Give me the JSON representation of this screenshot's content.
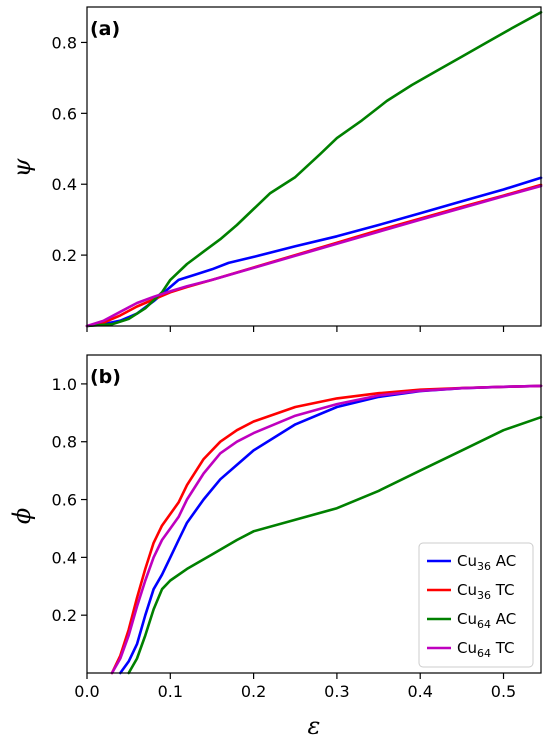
{
  "chart_data": [
    {
      "type": "line",
      "panel_label": "(a)",
      "xlabel": "",
      "ylabel": "ψ",
      "xlim": [
        0.0,
        0.545
      ],
      "ylim": [
        0.0,
        0.9
      ],
      "xticks": [],
      "yticks": [
        "0.2",
        "0.4",
        "0.6",
        "0.8"
      ],
      "ytick_values": [
        0.2,
        0.4,
        0.6,
        0.8
      ],
      "xtick_marks": [
        0.0,
        0.1,
        0.2,
        0.3,
        0.4,
        0.5
      ],
      "grid": false,
      "series": [
        {
          "name": "Cu36 AC",
          "color": "#0000ff",
          "x": [
            0.0,
            0.02,
            0.04,
            0.06,
            0.08,
            0.1,
            0.11,
            0.13,
            0.15,
            0.17,
            0.2,
            0.25,
            0.3,
            0.35,
            0.4,
            0.45,
            0.5,
            0.545
          ],
          "y": [
            0.0,
            0.005,
            0.015,
            0.035,
            0.07,
            0.11,
            0.13,
            0.145,
            0.16,
            0.178,
            0.195,
            0.225,
            0.253,
            0.285,
            0.318,
            0.352,
            0.385,
            0.418
          ]
        },
        {
          "name": "Cu36 TC",
          "color": "#ff0000",
          "x": [
            0.0,
            0.02,
            0.04,
            0.06,
            0.08,
            0.1,
            0.12,
            0.15,
            0.2,
            0.25,
            0.3,
            0.35,
            0.4,
            0.45,
            0.5,
            0.545
          ],
          "y": [
            0.0,
            0.01,
            0.03,
            0.055,
            0.075,
            0.095,
            0.11,
            0.13,
            0.165,
            0.2,
            0.235,
            0.27,
            0.303,
            0.336,
            0.368,
            0.398
          ]
        },
        {
          "name": "Cu64 AC",
          "color": "#008000",
          "x": [
            0.0,
            0.03,
            0.05,
            0.07,
            0.09,
            0.1,
            0.12,
            0.14,
            0.16,
            0.18,
            0.2,
            0.22,
            0.25,
            0.28,
            0.3,
            0.33,
            0.36,
            0.39,
            0.42,
            0.45,
            0.48,
            0.51,
            0.545
          ],
          "y": [
            0.0,
            0.005,
            0.02,
            0.05,
            0.095,
            0.13,
            0.175,
            0.21,
            0.245,
            0.285,
            0.33,
            0.375,
            0.42,
            0.485,
            0.53,
            0.58,
            0.635,
            0.68,
            0.72,
            0.76,
            0.8,
            0.84,
            0.885
          ]
        },
        {
          "name": "Cu64 TC",
          "color": "#bf00bf",
          "x": [
            0.0,
            0.02,
            0.04,
            0.06,
            0.08,
            0.1,
            0.12,
            0.15,
            0.2,
            0.25,
            0.3,
            0.35,
            0.4,
            0.45,
            0.5,
            0.545
          ],
          "y": [
            0.0,
            0.015,
            0.04,
            0.065,
            0.082,
            0.098,
            0.112,
            0.13,
            0.164,
            0.198,
            0.232,
            0.266,
            0.3,
            0.333,
            0.366,
            0.395
          ]
        }
      ]
    },
    {
      "type": "line",
      "panel_label": "(b)",
      "xlabel": "ε",
      "ylabel": "ϕ",
      "xlim": [
        0.0,
        0.545
      ],
      "ylim": [
        0.0,
        1.1
      ],
      "xticks": [
        "0.0",
        "0.1",
        "0.2",
        "0.3",
        "0.4",
        "0.5"
      ],
      "xtick_values": [
        0.0,
        0.1,
        0.2,
        0.3,
        0.4,
        0.5
      ],
      "yticks": [
        "0.2",
        "0.4",
        "0.6",
        "0.8",
        "1.0"
      ],
      "ytick_values": [
        0.2,
        0.4,
        0.6,
        0.8,
        1.0
      ],
      "grid": false,
      "legend_position": "bottom-right",
      "series": [
        {
          "name": "Cu36 AC",
          "label_base": "Cu",
          "label_sub": "36",
          "label_rest": " AC",
          "color": "#0000ff",
          "x": [
            0.04,
            0.05,
            0.06,
            0.07,
            0.08,
            0.09,
            0.1,
            0.11,
            0.12,
            0.14,
            0.16,
            0.18,
            0.2,
            0.25,
            0.3,
            0.35,
            0.4,
            0.45,
            0.5,
            0.545
          ],
          "y": [
            0.0,
            0.04,
            0.1,
            0.2,
            0.29,
            0.34,
            0.4,
            0.46,
            0.52,
            0.6,
            0.67,
            0.72,
            0.77,
            0.86,
            0.92,
            0.955,
            0.975,
            0.985,
            0.99,
            0.993
          ]
        },
        {
          "name": "Cu36 TC",
          "label_base": "Cu",
          "label_sub": "36",
          "label_rest": " TC",
          "color": "#ff0000",
          "x": [
            0.03,
            0.04,
            0.05,
            0.06,
            0.07,
            0.08,
            0.09,
            0.1,
            0.11,
            0.12,
            0.14,
            0.16,
            0.18,
            0.2,
            0.25,
            0.3,
            0.35,
            0.4,
            0.45,
            0.5,
            0.545
          ],
          "y": [
            0.0,
            0.06,
            0.15,
            0.26,
            0.36,
            0.45,
            0.51,
            0.55,
            0.59,
            0.65,
            0.74,
            0.8,
            0.84,
            0.87,
            0.92,
            0.95,
            0.968,
            0.98,
            0.986,
            0.99,
            0.993
          ]
        },
        {
          "name": "Cu64 AC",
          "label_base": "Cu",
          "label_sub": "64",
          "label_rest": " AC",
          "color": "#008000",
          "x": [
            0.05,
            0.06,
            0.07,
            0.08,
            0.09,
            0.1,
            0.12,
            0.15,
            0.18,
            0.2,
            0.25,
            0.3,
            0.35,
            0.4,
            0.45,
            0.5,
            0.545
          ],
          "y": [
            0.0,
            0.05,
            0.13,
            0.22,
            0.29,
            0.32,
            0.36,
            0.41,
            0.46,
            0.49,
            0.53,
            0.57,
            0.63,
            0.7,
            0.77,
            0.84,
            0.885
          ]
        },
        {
          "name": "Cu64 TC",
          "label_base": "Cu",
          "label_sub": "64",
          "label_rest": " TC",
          "color": "#bf00bf",
          "x": [
            0.03,
            0.04,
            0.05,
            0.06,
            0.07,
            0.08,
            0.09,
            0.1,
            0.11,
            0.12,
            0.14,
            0.16,
            0.18,
            0.2,
            0.25,
            0.3,
            0.35,
            0.4,
            0.45,
            0.5,
            0.545
          ],
          "y": [
            0.0,
            0.05,
            0.13,
            0.23,
            0.32,
            0.4,
            0.46,
            0.5,
            0.54,
            0.6,
            0.69,
            0.76,
            0.8,
            0.83,
            0.89,
            0.93,
            0.96,
            0.976,
            0.985,
            0.99,
            0.993
          ]
        }
      ]
    }
  ]
}
